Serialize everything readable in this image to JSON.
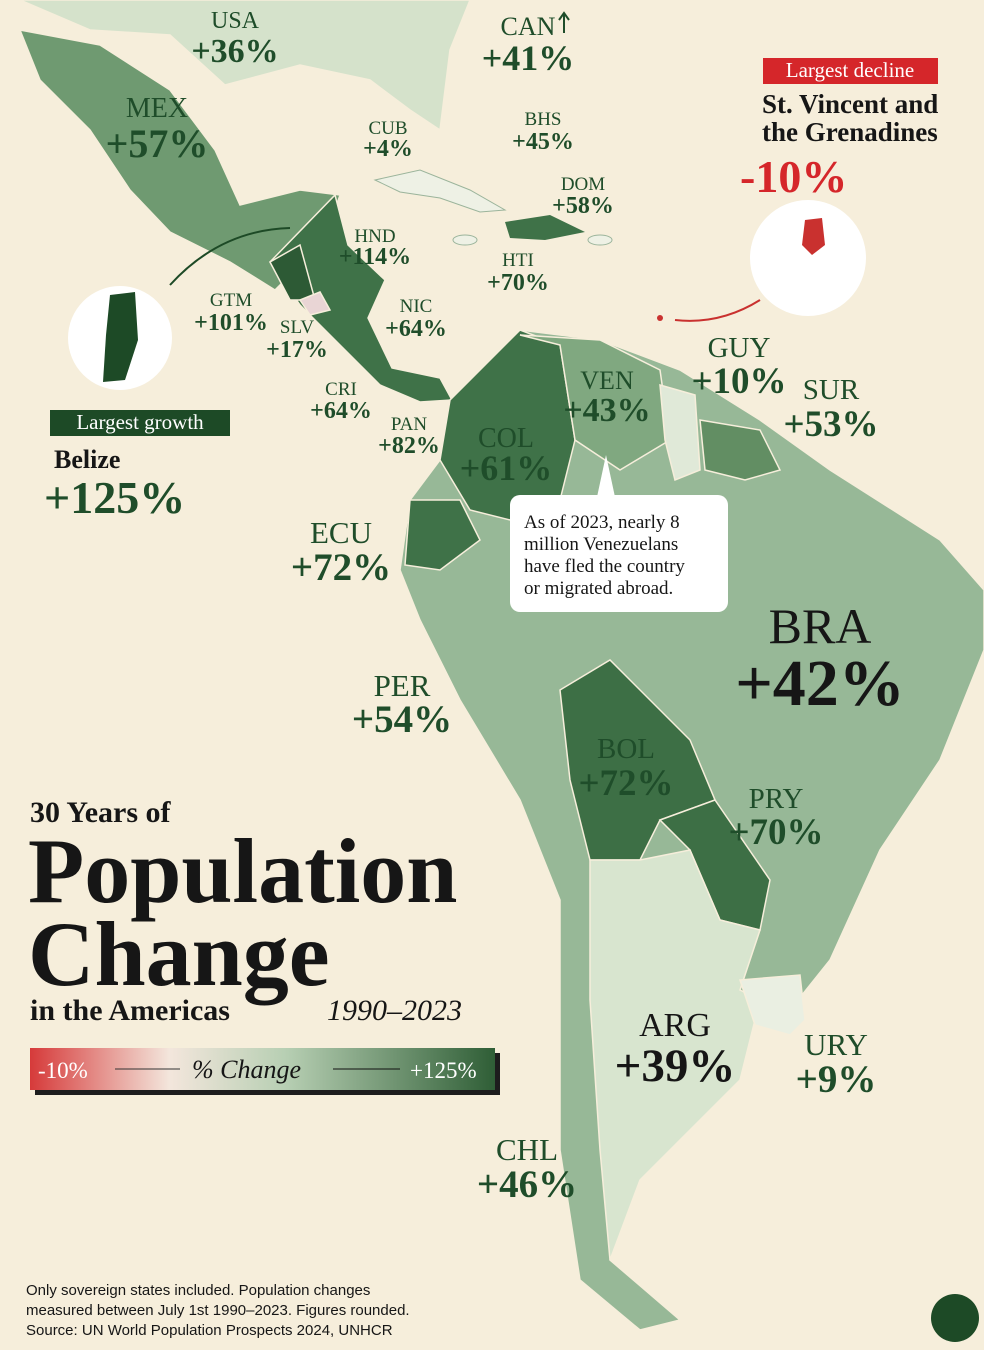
{
  "title": {
    "kicker": "30 Years of",
    "line1": "Population",
    "line2": "Change",
    "sub": "in the Americas",
    "years": "1990–2023"
  },
  "legend": {
    "min": "-10%",
    "label": "% Change",
    "max": "+125%"
  },
  "countries": [
    {
      "code": "USA",
      "change": "+36%"
    },
    {
      "code": "CAN",
      "change": "+41%"
    },
    {
      "code": "MEX",
      "change": "+57%"
    },
    {
      "code": "CUB",
      "change": "+4%"
    },
    {
      "code": "BHS",
      "change": "+45%"
    },
    {
      "code": "DOM",
      "change": "+58%"
    },
    {
      "code": "HND",
      "change": "+114%"
    },
    {
      "code": "HTI",
      "change": "+70%"
    },
    {
      "code": "GTM",
      "change": "+101%"
    },
    {
      "code": "SLV",
      "change": "+17%"
    },
    {
      "code": "NIC",
      "change": "+64%"
    },
    {
      "code": "CRI",
      "change": "+64%"
    },
    {
      "code": "PAN",
      "change": "+82%"
    },
    {
      "code": "COL",
      "change": "+61%"
    },
    {
      "code": "VEN",
      "change": "+43%"
    },
    {
      "code": "GUY",
      "change": "+10%"
    },
    {
      "code": "SUR",
      "change": "+53%"
    },
    {
      "code": "ECU",
      "change": "+72%"
    },
    {
      "code": "PER",
      "change": "+54%"
    },
    {
      "code": "BRA",
      "change": "+42%"
    },
    {
      "code": "BOL",
      "change": "+72%"
    },
    {
      "code": "PRY",
      "change": "+70%"
    },
    {
      "code": "ARG",
      "change": "+39%"
    },
    {
      "code": "URY",
      "change": "+9%"
    },
    {
      "code": "CHL",
      "change": "+46%"
    }
  ],
  "growth": {
    "tag": "Largest growth",
    "name": "Belize",
    "change": "+125%"
  },
  "decline": {
    "tag": "Largest decline",
    "name": [
      "St. Vincent and",
      "the Grenadines"
    ],
    "change": "-10%"
  },
  "note": [
    "As of 2023, nearly 8",
    "million Venezuelans",
    "have fled the country",
    "or migrated abroad."
  ],
  "footer": [
    "Only sovereign states included. Population changes",
    "measured between July 1st 1990–2023. Figures rounded.",
    "Source: UN World Population Prospects 2024, UNHCR"
  ]
}
